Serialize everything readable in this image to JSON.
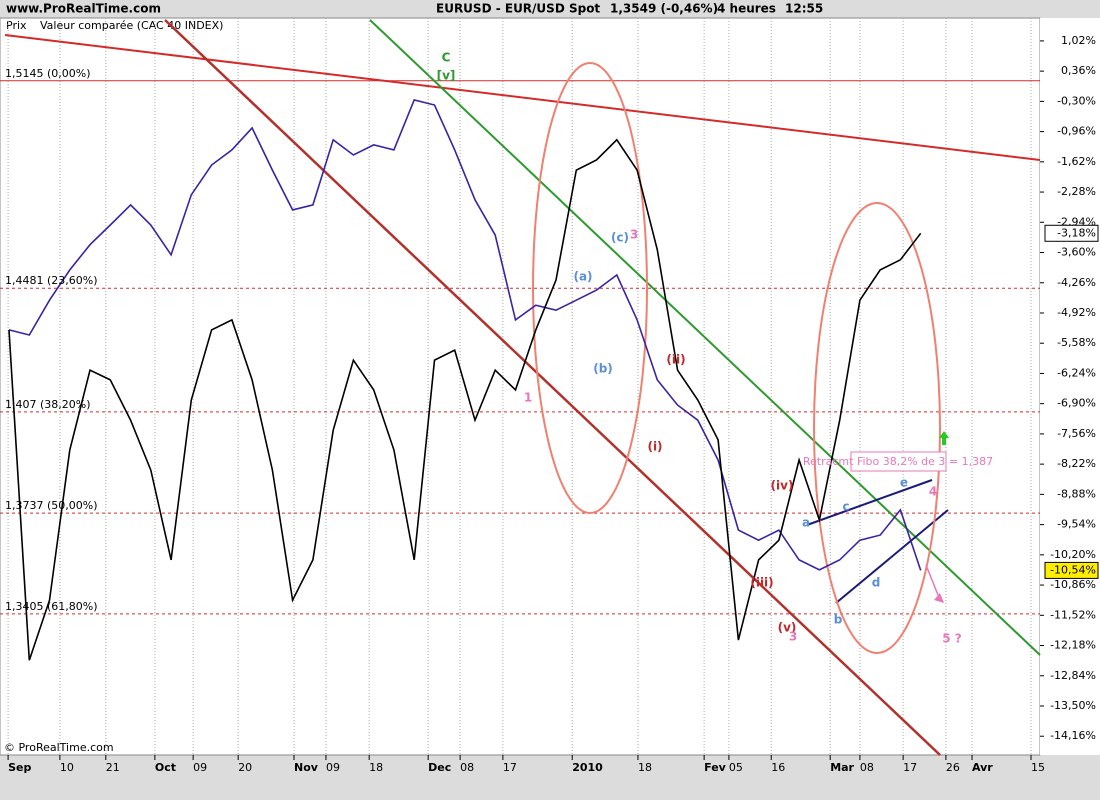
{
  "header": {
    "site": "www.ProRealTime.com",
    "price": "1,3549 (-0,46%)",
    "period": "4 heures",
    "time": "12:55",
    "footer": "© ProRealTime.com"
  },
  "chart_data": {
    "type": "line",
    "title": "EURUSD - EUR/USD Spot",
    "x": [
      2,
      6.5,
      11,
      15.5,
      20,
      24.5,
      29,
      33.5,
      38,
      42.5,
      47,
      51.5,
      56,
      60.5,
      65,
      69.5,
      74,
      78.5,
      83,
      87.5,
      92,
      96.5,
      101,
      105.5,
      110,
      114.5,
      119,
      123.5,
      128,
      132.5,
      137,
      141.5,
      146,
      150.5,
      155,
      159.5,
      164,
      168.5,
      173,
      177.5,
      182,
      186.5,
      191,
      195.5,
      200,
      204.5
    ],
    "series": [
      {
        "name": "Prix",
        "color": "#3a22a8",
        "values": [
          -5.29,
          -5.4,
          -4.64,
          -3.98,
          -3.43,
          -3.0,
          -2.56,
          -3.0,
          -3.65,
          -2.34,
          -1.69,
          -1.36,
          -0.88,
          -1.8,
          -2.67,
          -2.56,
          -1.14,
          -1.47,
          -1.25,
          -1.36,
          -0.27,
          -0.38,
          -1.36,
          -2.45,
          -3.22,
          -5.07,
          -4.75,
          -4.86,
          -4.64,
          -4.42,
          -4.09,
          -5.07,
          -6.38,
          -6.93,
          -7.26,
          -8.13,
          -9.66,
          -9.88,
          -9.66,
          -10.31,
          -10.53,
          -10.31,
          -9.88,
          -9.77,
          -9.22,
          -10.54
        ],
        "value_labels": [
          null,
          null,
          null,
          null,
          null,
          null,
          null,
          null,
          null,
          null,
          null,
          null,
          null,
          null,
          null,
          null,
          null,
          null,
          null,
          null,
          null,
          null,
          null,
          null,
          null,
          null,
          null,
          null,
          null,
          null,
          null,
          null,
          null,
          null,
          null,
          null,
          null,
          null,
          null,
          null,
          null,
          null,
          null,
          null,
          null,
          "-10,54%"
        ]
      },
      {
        "name": "Valeur comparée (CAC 40 INDEX)",
        "color": "#000000",
        "values": [
          -5.29,
          -12.5,
          -11.19,
          -7.91,
          -6.17,
          -6.38,
          -7.26,
          -8.35,
          -10.31,
          -6.82,
          -5.29,
          -5.07,
          -6.38,
          -8.35,
          -11.19,
          -10.31,
          -7.48,
          -5.95,
          -6.6,
          -7.91,
          -10.31,
          -5.95,
          -5.73,
          -7.26,
          -6.17,
          -6.6,
          -5.29,
          -4.2,
          -1.8,
          -1.58,
          -1.14,
          -1.8,
          -3.54,
          -6.17,
          -6.82,
          -7.69,
          -12.06,
          -10.31,
          -9.88,
          -8.13,
          -9.44,
          -7.26,
          -4.64,
          -3.98,
          -3.76,
          -3.18
        ],
        "value_labels": [
          null,
          null,
          null,
          null,
          null,
          null,
          null,
          null,
          null,
          null,
          null,
          null,
          null,
          null,
          null,
          null,
          null,
          null,
          null,
          null,
          null,
          null,
          null,
          null,
          null,
          null,
          null,
          null,
          null,
          null,
          null,
          null,
          null,
          null,
          null,
          null,
          null,
          null,
          null,
          null,
          null,
          null,
          null,
          null,
          null,
          "-3,18%"
        ]
      }
    ],
    "xlim": [
      0,
      231
    ],
    "xticks": [
      {
        "value": 1.8,
        "label": "Sep"
      },
      {
        "value": 13.3,
        "label": "10"
      },
      {
        "value": 23.5,
        "label": "21"
      },
      {
        "value": 34.4,
        "label": "Oct"
      },
      {
        "value": 42.9,
        "label": "09"
      },
      {
        "value": 52.9,
        "label": "20"
      },
      {
        "value": 65.3,
        "label": "Nov"
      },
      {
        "value": 72.4,
        "label": "09"
      },
      {
        "value": 82,
        "label": "18"
      },
      {
        "value": 95.1,
        "label": "Dec"
      },
      {
        "value": 102.2,
        "label": "08"
      },
      {
        "value": 111.7,
        "label": "17"
      },
      {
        "value": 127.1,
        "label": "2010"
      },
      {
        "value": 141.7,
        "label": "18"
      },
      {
        "value": 156.4,
        "label": "Fev"
      },
      {
        "value": 161.9,
        "label": "05"
      },
      {
        "value": 171.3,
        "label": "16"
      },
      {
        "value": 184.4,
        "label": "Mar"
      },
      {
        "value": 191,
        "label": "08"
      },
      {
        "value": 200.6,
        "label": "17"
      },
      {
        "value": 210.1,
        "label": "26"
      },
      {
        "value": 215.9,
        "label": "Avr"
      },
      {
        "value": 229,
        "label": "15"
      }
    ],
    "ylim": [
      -14.57,
      1.52
    ],
    "yticks": [
      {
        "value": 1.02,
        "label": "1,02%"
      },
      {
        "value": 0.36,
        "label": "0,36%"
      },
      {
        "value": -0.3,
        "label": "-0,30%"
      },
      {
        "value": -0.96,
        "label": "-0,96%"
      },
      {
        "value": -1.62,
        "label": "-1,62%"
      },
      {
        "value": -2.28,
        "label": "-2,28%"
      },
      {
        "value": -2.94,
        "label": "-2,94%"
      },
      {
        "value": -3.6,
        "label": "-3,60%"
      },
      {
        "value": -4.26,
        "label": "-4,26%"
      },
      {
        "value": -4.92,
        "label": "-4,92%"
      },
      {
        "value": -5.58,
        "label": "-5,58%"
      },
      {
        "value": -6.24,
        "label": "-6,24%"
      },
      {
        "value": -6.9,
        "label": "-6,90%"
      },
      {
        "value": -7.56,
        "label": "-7,56%"
      },
      {
        "value": -8.22,
        "label": "-8,22%"
      },
      {
        "value": -8.88,
        "label": "-8,88%"
      },
      {
        "value": -9.54,
        "label": "-9,54%"
      },
      {
        "value": -10.2,
        "label": "-10,20%"
      },
      {
        "value": -10.86,
        "label": "-10,86%"
      },
      {
        "value": -11.52,
        "label": "-11,52%"
      },
      {
        "value": -12.18,
        "label": "-12,18%"
      },
      {
        "value": -12.84,
        "label": "-12,84%"
      },
      {
        "value": -13.5,
        "label": "-13,50%"
      },
      {
        "value": -14.16,
        "label": "-14,16%"
      }
    ],
    "levels": [
      {
        "value": 0.15,
        "label": "1,5145 (0,00%)"
      },
      {
        "value": -4.38,
        "label": "1,4481 (23,60%)"
      },
      {
        "value": -7.08,
        "label": "1,407 (38,20%)"
      },
      {
        "value": -9.29,
        "label": "1,3737 (50,00%)"
      },
      {
        "value": -11.49,
        "label": "1,3405 (61,80%)"
      }
    ],
    "annotations": [
      "C",
      "[v]",
      "(a)",
      "(b)",
      "(c)",
      "3",
      "1",
      "(ii)",
      "(i)",
      "(iv)",
      "(iii)",
      "(v)",
      "3",
      "a",
      "b",
      "c",
      "d",
      "e",
      "4",
      "5 ?",
      "Retracmt Fibo 38,2% de 3 = 1,387"
    ],
    "grid": true
  }
}
